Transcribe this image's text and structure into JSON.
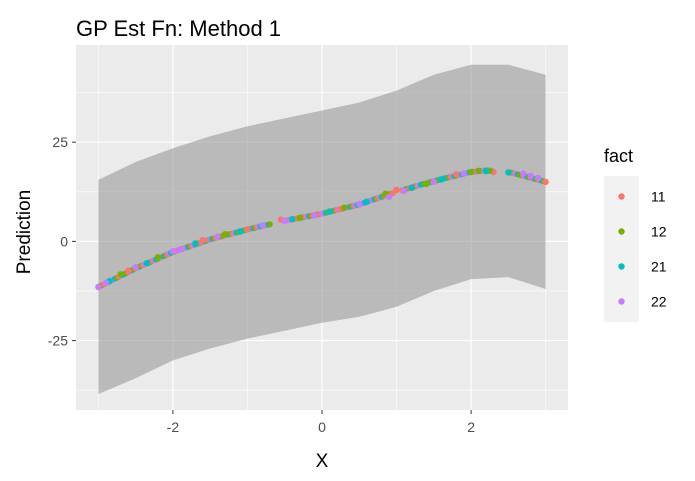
{
  "chart_data": {
    "type": "scatter",
    "title": "GP Est Fn: Method 1",
    "xlabel": "X",
    "ylabel": "Prediction",
    "xlim": [
      -3.3,
      3.3
    ],
    "ylim": [
      -42.5,
      49.5
    ],
    "xticks": [
      -2,
      0,
      2
    ],
    "xtick_labels": [
      "-2",
      "0",
      "2"
    ],
    "yticks": [
      -25,
      0,
      25
    ],
    "ytick_labels": [
      "-25",
      "0",
      "25"
    ],
    "grid": true,
    "legend": {
      "title": "fact",
      "position": "right"
    },
    "series": [
      {
        "name": "11",
        "color": "#F8766D",
        "points": [
          [
            -2.6,
            -7.4
          ],
          [
            -1.6,
            0.3
          ],
          [
            -1.0,
            3.0
          ],
          [
            -0.55,
            5.5
          ],
          [
            0.25,
            8.2
          ],
          [
            1.0,
            13.0
          ],
          [
            1.8,
            16.9
          ],
          [
            2.3,
            17.5
          ],
          [
            3.0,
            15.0
          ]
        ]
      },
      {
        "name": "12",
        "color": "#7CAE00",
        "points": [
          [
            -2.7,
            -8.3
          ],
          [
            -2.2,
            -4.0
          ],
          [
            -1.3,
            1.8
          ],
          [
            -0.3,
            5.9
          ],
          [
            0.3,
            8.5
          ],
          [
            0.85,
            12.0
          ],
          [
            1.4,
            14.5
          ],
          [
            2.0,
            17.5
          ],
          [
            2.1,
            17.8
          ],
          [
            2.25,
            17.8
          ]
        ]
      },
      {
        "name": "21",
        "color": "#00BFC4",
        "points": [
          [
            -2.85,
            -10.0
          ],
          [
            -2.35,
            -5.5
          ],
          [
            -1.7,
            -0.5
          ],
          [
            -1.1,
            2.5
          ],
          [
            -0.4,
            5.6
          ],
          [
            0.1,
            7.5
          ],
          [
            0.6,
            10.0
          ],
          [
            1.2,
            13.5
          ],
          [
            1.6,
            15.6
          ],
          [
            2.2,
            17.7
          ],
          [
            2.5,
            17.4
          ]
        ]
      },
      {
        "name": "22",
        "color": "#C77CFF",
        "points": [
          [
            -3.0,
            -11.5
          ],
          [
            -2.9,
            -10.5
          ],
          [
            -2.5,
            -6.5
          ],
          [
            -2.0,
            -2.5
          ],
          [
            -1.9,
            -2.0
          ],
          [
            -1.4,
            1.2
          ],
          [
            -0.8,
            4.0
          ],
          [
            -0.5,
            5.2
          ],
          [
            -0.1,
            6.6
          ],
          [
            0.5,
            9.4
          ],
          [
            0.9,
            11.2
          ],
          [
            1.1,
            12.7
          ],
          [
            1.5,
            15.0
          ],
          [
            1.9,
            17.1
          ],
          [
            2.7,
            17.1
          ],
          [
            2.8,
            16.5
          ],
          [
            2.9,
            16.0
          ]
        ]
      }
    ],
    "ribbon": {
      "x": [
        -3.0,
        -2.5,
        -2.0,
        -1.5,
        -1.0,
        -0.5,
        0.0,
        0.5,
        1.0,
        1.5,
        2.0,
        2.5,
        3.0
      ],
      "lower": [
        -38.5,
        -34.5,
        -30.0,
        -27.0,
        -24.5,
        -22.5,
        -20.5,
        -19.0,
        -16.5,
        -12.5,
        -9.5,
        -9.0,
        -12.0
      ],
      "upper": [
        15.5,
        20.0,
        23.5,
        26.5,
        29.0,
        31.0,
        33.0,
        35.0,
        38.0,
        42.0,
        44.5,
        44.5,
        42.0
      ]
    },
    "curve": {
      "x": [
        -3.0,
        -2.5,
        -2.0,
        -1.5,
        -1.0,
        -0.5,
        0.0,
        0.5,
        1.0,
        1.5,
        2.0,
        2.2,
        2.5,
        3.0
      ],
      "y": [
        -11.5,
        -6.8,
        -2.7,
        0.5,
        3.0,
        5.2,
        7.0,
        9.3,
        12.5,
        15.2,
        17.5,
        17.9,
        17.5,
        15.0
      ]
    }
  }
}
